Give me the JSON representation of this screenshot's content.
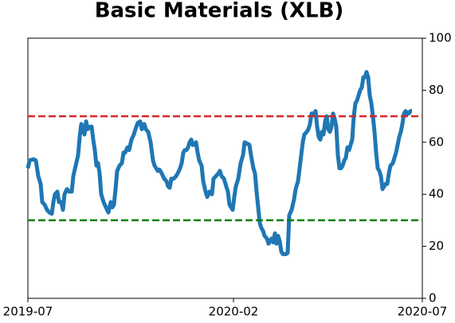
{
  "chart_data": {
    "type": "line",
    "title": "Basic Materials (XLB)",
    "x": [
      0,
      2,
      7,
      10,
      13,
      16,
      18,
      21,
      24,
      27,
      30,
      32,
      34,
      37,
      39,
      42,
      44,
      46,
      49,
      52,
      55,
      57,
      60,
      63,
      65,
      67,
      69,
      71,
      73,
      75,
      78,
      80,
      82,
      84,
      86,
      88,
      90,
      92,
      95,
      98,
      101,
      104,
      106,
      108,
      110,
      112,
      115,
      118,
      120,
      122,
      125,
      127,
      130,
      133,
      135,
      138,
      141,
      143,
      146,
      148,
      151,
      154,
      157,
      159,
      161,
      163,
      165,
      168,
      171,
      174,
      176,
      178,
      180,
      183,
      186,
      188,
      191,
      193,
      195,
      197,
      199,
      201,
      203,
      205,
      207,
      209,
      211,
      213,
      215,
      218,
      220,
      223,
      225,
      228,
      231,
      233,
      236,
      239,
      241,
      243,
      246,
      248,
      251,
      253,
      255,
      257,
      259,
      261,
      264,
      267,
      270,
      272,
      275,
      278,
      280,
      283,
      285,
      287,
      289,
      291,
      293,
      295,
      297,
      300,
      302,
      304,
      306,
      308,
      310,
      312,
      314,
      316,
      318,
      320,
      322,
      324,
      326,
      328,
      331,
      334,
      336,
      339,
      341,
      343,
      345,
      347,
      350,
      352,
      354,
      356,
      359,
      361,
      363,
      365,
      367,
      369,
      371,
      373,
      375,
      377,
      379,
      381,
      383,
      385,
      387,
      389,
      391,
      393,
      395,
      397,
      399,
      401,
      403,
      405,
      407,
      409,
      411,
      413,
      415,
      417,
      419,
      421,
      423,
      425,
      427,
      429,
      431,
      433,
      435,
      437,
      439,
      441,
      443,
      445,
      447,
      449,
      451,
      453,
      455,
      458,
      460,
      462,
      464,
      466,
      468,
      470,
      472,
      474,
      476,
      478,
      480,
      482
    ],
    "series": [
      {
        "color": "#1f77b4",
        "values": [
          50,
          53,
          53.5,
          53,
          47,
          44,
          37,
          36,
          34,
          33,
          32.5,
          37,
          40,
          41,
          37,
          37,
          34,
          40,
          42,
          41,
          41,
          47,
          51,
          55,
          62,
          67,
          66,
          63,
          68,
          65,
          66,
          66,
          61,
          57,
          51,
          52,
          48,
          40,
          37,
          35,
          33,
          37,
          35,
          36,
          42,
          49,
          51,
          52,
          56,
          56,
          58,
          57,
          61,
          63,
          65,
          67.5,
          68,
          65,
          67,
          65,
          64,
          60,
          53,
          51,
          50,
          49,
          49.5,
          48,
          46,
          45,
          43,
          42.5,
          46,
          46,
          47,
          48,
          50,
          52,
          56,
          57,
          57,
          58,
          60,
          61,
          59,
          59,
          60,
          56,
          53,
          51,
          45,
          41,
          39,
          41,
          40,
          46,
          47,
          48,
          49,
          47,
          46,
          44,
          41,
          36,
          35,
          34,
          39,
          43,
          46,
          52,
          55,
          60,
          59.5,
          59,
          55,
          50,
          48,
          41,
          35,
          29,
          27,
          26,
          24,
          23,
          21,
          22,
          23,
          21.5,
          25,
          21,
          24,
          22,
          18,
          17,
          17,
          17,
          17.5,
          32,
          34,
          38,
          42,
          45,
          50,
          55,
          60,
          63,
          64,
          65,
          67,
          71,
          71,
          72,
          66,
          62,
          61,
          64,
          63,
          68,
          70,
          65,
          64,
          66,
          71,
          69,
          66,
          55,
          50,
          50,
          51,
          53,
          54,
          58,
          57,
          59,
          61,
          70,
          75,
          76,
          78,
          80,
          81,
          85,
          85,
          87,
          85,
          78,
          75,
          70,
          64,
          56,
          50,
          49,
          47,
          42,
          43,
          44,
          44,
          48,
          51,
          52,
          54,
          56,
          59,
          62,
          64,
          67,
          71,
          72,
          71,
          71,
          72,
          72
        ]
      }
    ],
    "hlines": [
      {
        "value": 70,
        "color": "#d62728"
      },
      {
        "value": 30,
        "color": "#008000"
      }
    ],
    "xlim": [
      0,
      495
    ],
    "xticks": [
      {
        "value": 0,
        "label": "2019-07"
      },
      {
        "value": 258,
        "label": "2020-02"
      },
      {
        "value": 495,
        "label": "2020-07"
      }
    ],
    "ylim": [
      0,
      100
    ],
    "yticks": [
      0,
      20,
      40,
      60,
      80,
      100
    ]
  }
}
